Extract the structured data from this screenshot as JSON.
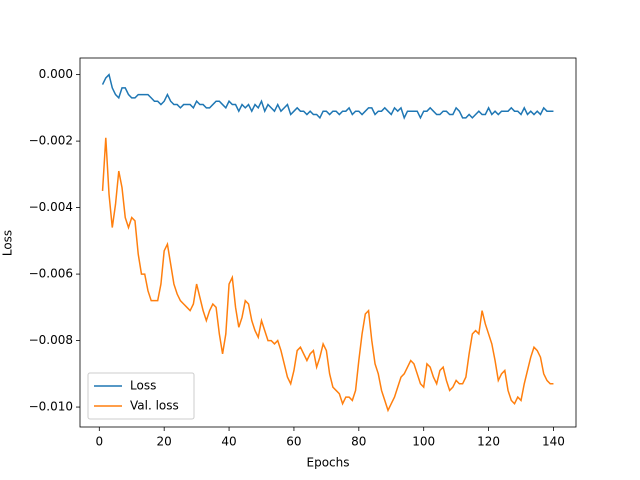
{
  "chart_data": {
    "type": "line",
    "xlabel": "Epochs",
    "ylabel": "Loss",
    "x": [
      1,
      2,
      3,
      4,
      5,
      6,
      7,
      8,
      9,
      10,
      11,
      12,
      13,
      14,
      15,
      16,
      17,
      18,
      19,
      20,
      21,
      22,
      23,
      24,
      25,
      26,
      27,
      28,
      29,
      30,
      31,
      32,
      33,
      34,
      35,
      36,
      37,
      38,
      39,
      40,
      41,
      42,
      43,
      44,
      45,
      46,
      47,
      48,
      49,
      50,
      51,
      52,
      53,
      54,
      55,
      56,
      57,
      58,
      59,
      60,
      61,
      62,
      63,
      64,
      65,
      66,
      67,
      68,
      69,
      70,
      71,
      72,
      73,
      74,
      75,
      76,
      77,
      78,
      79,
      80,
      81,
      82,
      83,
      84,
      85,
      86,
      87,
      88,
      89,
      90,
      91,
      92,
      93,
      94,
      95,
      96,
      97,
      98,
      99,
      100,
      101,
      102,
      103,
      104,
      105,
      106,
      107,
      108,
      109,
      110,
      111,
      112,
      113,
      114,
      115,
      116,
      117,
      118,
      119,
      120,
      121,
      122,
      123,
      124,
      125,
      126,
      127,
      128,
      129,
      130,
      131,
      132,
      133,
      134,
      135,
      136,
      137,
      138,
      139,
      140
    ],
    "series": [
      {
        "name": "Loss",
        "color": "#1f77b4",
        "values": [
          -0.0003,
          -0.0001,
          0.0,
          -0.0004,
          -0.0006,
          -0.0007,
          -0.0004,
          -0.0004,
          -0.0006,
          -0.0007,
          -0.0007,
          -0.0006,
          -0.0006,
          -0.0006,
          -0.0006,
          -0.0007,
          -0.0008,
          -0.0008,
          -0.0009,
          -0.0008,
          -0.0006,
          -0.0008,
          -0.0009,
          -0.0009,
          -0.001,
          -0.0009,
          -0.0009,
          -0.0009,
          -0.001,
          -0.0008,
          -0.0009,
          -0.0009,
          -0.001,
          -0.001,
          -0.0009,
          -0.0008,
          -0.0008,
          -0.0009,
          -0.001,
          -0.0008,
          -0.0009,
          -0.0009,
          -0.0011,
          -0.0009,
          -0.001,
          -0.0009,
          -0.0011,
          -0.0009,
          -0.001,
          -0.0008,
          -0.0011,
          -0.0009,
          -0.001,
          -0.0011,
          -0.0009,
          -0.0011,
          -0.001,
          -0.0009,
          -0.0012,
          -0.0011,
          -0.001,
          -0.0011,
          -0.0011,
          -0.0012,
          -0.0011,
          -0.0012,
          -0.0012,
          -0.0013,
          -0.0011,
          -0.0011,
          -0.0012,
          -0.0011,
          -0.0011,
          -0.0012,
          -0.0011,
          -0.0011,
          -0.001,
          -0.0012,
          -0.0011,
          -0.0011,
          -0.0012,
          -0.0011,
          -0.001,
          -0.001,
          -0.0012,
          -0.0011,
          -0.0011,
          -0.001,
          -0.0011,
          -0.0012,
          -0.001,
          -0.0011,
          -0.001,
          -0.0013,
          -0.0011,
          -0.0011,
          -0.0011,
          -0.0011,
          -0.0013,
          -0.0011,
          -0.0011,
          -0.001,
          -0.0011,
          -0.0012,
          -0.0012,
          -0.0011,
          -0.0011,
          -0.0012,
          -0.0012,
          -0.001,
          -0.0011,
          -0.0013,
          -0.0013,
          -0.0012,
          -0.0013,
          -0.0012,
          -0.0011,
          -0.0012,
          -0.0012,
          -0.001,
          -0.0012,
          -0.0011,
          -0.0012,
          -0.0011,
          -0.0011,
          -0.0011,
          -0.001,
          -0.0011,
          -0.0011,
          -0.0012,
          -0.001,
          -0.0012,
          -0.0011,
          -0.0012,
          -0.0011,
          -0.0012,
          -0.001,
          -0.0011,
          -0.0011,
          -0.0011
        ]
      },
      {
        "name": "Val. loss",
        "color": "#ff7f0e",
        "values": [
          -0.0035,
          -0.0019,
          -0.0036,
          -0.0046,
          -0.0039,
          -0.0029,
          -0.0034,
          -0.0043,
          -0.0046,
          -0.0043,
          -0.0044,
          -0.0054,
          -0.006,
          -0.006,
          -0.0065,
          -0.0068,
          -0.0068,
          -0.0068,
          -0.0063,
          -0.0053,
          -0.0051,
          -0.0057,
          -0.0063,
          -0.0066,
          -0.0068,
          -0.0069,
          -0.007,
          -0.0071,
          -0.0069,
          -0.0063,
          -0.0067,
          -0.0071,
          -0.0074,
          -0.0071,
          -0.0069,
          -0.007,
          -0.0078,
          -0.0084,
          -0.0078,
          -0.0063,
          -0.0061,
          -0.007,
          -0.0076,
          -0.0073,
          -0.0068,
          -0.0069,
          -0.0074,
          -0.0077,
          -0.0079,
          -0.0074,
          -0.0077,
          -0.008,
          -0.008,
          -0.0081,
          -0.008,
          -0.0083,
          -0.0087,
          -0.0091,
          -0.0093,
          -0.0089,
          -0.0083,
          -0.0082,
          -0.0084,
          -0.0086,
          -0.0084,
          -0.0083,
          -0.0088,
          -0.0085,
          -0.0081,
          -0.0083,
          -0.009,
          -0.0094,
          -0.0095,
          -0.0096,
          -0.0099,
          -0.0097,
          -0.0097,
          -0.0098,
          -0.0095,
          -0.0086,
          -0.0078,
          -0.0072,
          -0.0071,
          -0.008,
          -0.0087,
          -0.009,
          -0.0095,
          -0.0098,
          -0.0101,
          -0.0099,
          -0.0097,
          -0.0094,
          -0.0091,
          -0.009,
          -0.0088,
          -0.0086,
          -0.0087,
          -0.009,
          -0.0093,
          -0.0094,
          -0.0087,
          -0.0088,
          -0.0091,
          -0.0093,
          -0.0089,
          -0.0088,
          -0.0092,
          -0.0095,
          -0.0094,
          -0.0092,
          -0.0093,
          -0.0093,
          -0.0091,
          -0.0084,
          -0.0078,
          -0.0077,
          -0.0078,
          -0.0071,
          -0.0075,
          -0.0078,
          -0.0081,
          -0.0086,
          -0.0092,
          -0.009,
          -0.0089,
          -0.0095,
          -0.0098,
          -0.0099,
          -0.0097,
          -0.0098,
          -0.0093,
          -0.0089,
          -0.0085,
          -0.0082,
          -0.0083,
          -0.0085,
          -0.009,
          -0.0092,
          -0.0093,
          -0.0093
        ]
      }
    ],
    "xlim": [
      -5.95,
      146.95
    ],
    "xticks": [
      0,
      20,
      40,
      60,
      80,
      100,
      120,
      140
    ],
    "ylim": [
      -0.0106,
      0.0005
    ],
    "yticks": [
      {
        "value": -0.01,
        "label": "−0.010"
      },
      {
        "value": -0.008,
        "label": "−0.008"
      },
      {
        "value": -0.006,
        "label": "−0.006"
      },
      {
        "value": -0.004,
        "label": "−0.004"
      },
      {
        "value": -0.002,
        "label": "−0.002"
      },
      {
        "value": 0,
        "label": "0.000"
      }
    ],
    "legend": "lower left",
    "grid": false
  }
}
